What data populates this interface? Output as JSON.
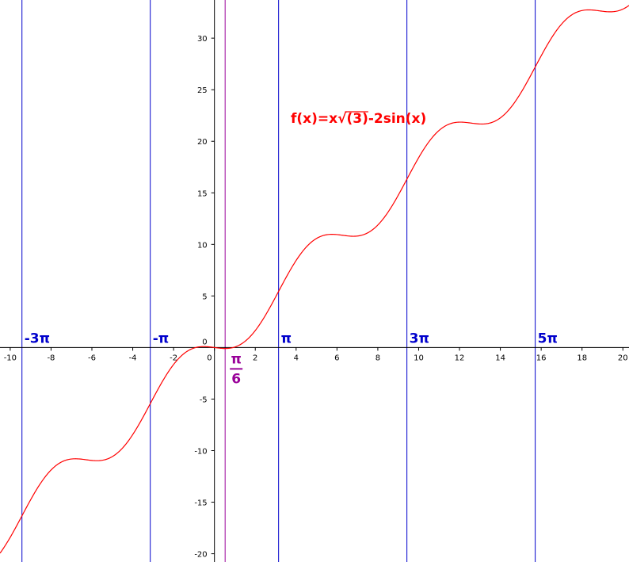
{
  "chart_data": {
    "type": "line",
    "title": "",
    "xlabel": "",
    "ylabel": "",
    "xlim": [
      -10.5,
      20.3
    ],
    "ylim": [
      -20.8,
      33.7
    ],
    "grid": false,
    "x_ticks": [
      -10,
      -8,
      -6,
      -4,
      -2,
      0,
      2,
      4,
      6,
      8,
      10,
      12,
      14,
      16,
      18,
      20
    ],
    "x_tick_labels": [
      "-10",
      "-8",
      "-6",
      "-4",
      "-2",
      "0",
      "2",
      "4",
      "6",
      "8",
      "10",
      "12",
      "14",
      "16",
      "18",
      "20"
    ],
    "y_ticks": [
      -20,
      -15,
      -10,
      -5,
      0,
      5,
      10,
      15,
      20,
      25,
      30
    ],
    "y_tick_labels": [
      "-20",
      "-15",
      "-10",
      "-5",
      "0",
      "5",
      "10",
      "15",
      "20",
      "25",
      "30"
    ],
    "function": {
      "label_prefix": "f(x)=x",
      "label_sqrt": "(3)",
      "label_suffix": "-2sin(x)",
      "color": "#ff0000",
      "x_step": 0.05
    },
    "vertical_lines": [
      {
        "x": -9.4248,
        "label": "-3π",
        "color": "#0000cc"
      },
      {
        "x": -3.1416,
        "label": "-π",
        "color": "#0000cc"
      },
      {
        "x": 3.1416,
        "label": "π",
        "color": "#0000cc"
      },
      {
        "x": 9.4248,
        "label": "3π",
        "color": "#0000cc"
      },
      {
        "x": 15.708,
        "label": "5π",
        "color": "#0000cc"
      }
    ],
    "special_line": {
      "x": 0.5236,
      "numerator": "π",
      "denominator": "6",
      "color": "#990099"
    }
  }
}
